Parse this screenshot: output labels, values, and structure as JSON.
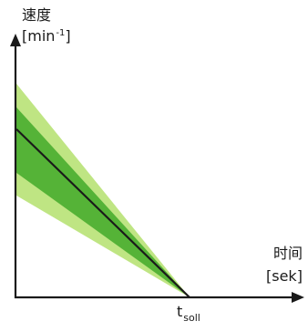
{
  "diagram": {
    "y_axis": {
      "title": "速度",
      "unit_open": "[",
      "unit_base": "min",
      "unit_exp": "-1",
      "unit_close": "]"
    },
    "x_axis": {
      "title": "时间",
      "unit": "[sek]"
    },
    "marker": {
      "base": "t",
      "sub": "soll"
    },
    "colors": {
      "axis": "#1a1a1a",
      "band_outer": "#9ed64a",
      "band_inner": "#3aa52a",
      "line": "#1a1a1a"
    }
  }
}
